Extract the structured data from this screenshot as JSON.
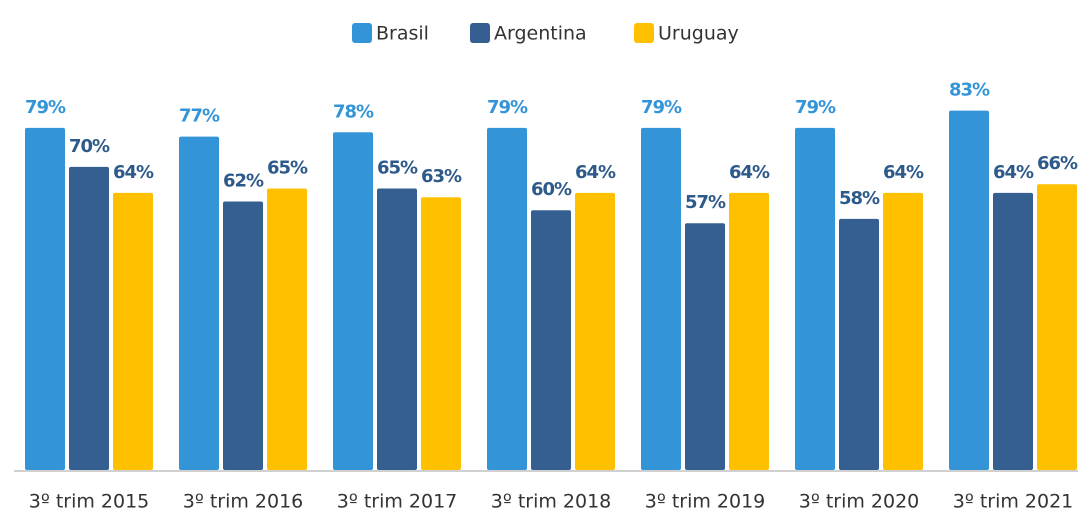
{
  "chart_data": {
    "type": "bar",
    "categories": [
      "3º trim 2015",
      "3º trim 2016",
      "3º trim 2017",
      "3º trim 2018",
      "3º trim 2019",
      "3º trim 2020",
      "3º trim 2021"
    ],
    "series": [
      {
        "name": "Brasil",
        "color": "#3494d8",
        "values": [
          79,
          77,
          78,
          79,
          79,
          79,
          83
        ],
        "value_labels": [
          "79%",
          "77%",
          "78%",
          "79%",
          "79%",
          "79%",
          "83%"
        ]
      },
      {
        "name": "Argentina",
        "color": "#355f91",
        "values": [
          70,
          62,
          65,
          60,
          57,
          58,
          64
        ],
        "value_labels": [
          "70%",
          "62%",
          "65%",
          "60%",
          "57%",
          "58%",
          "64%"
        ]
      },
      {
        "name": "Uruguay",
        "color": "#ffc000",
        "values": [
          64,
          65,
          63,
          64,
          64,
          64,
          66
        ],
        "value_labels": [
          "64%",
          "65%",
          "63%",
          "64%",
          "64%",
          "64%",
          "66%"
        ]
      }
    ],
    "ylim": [
      0,
      100
    ],
    "legend": "top"
  }
}
